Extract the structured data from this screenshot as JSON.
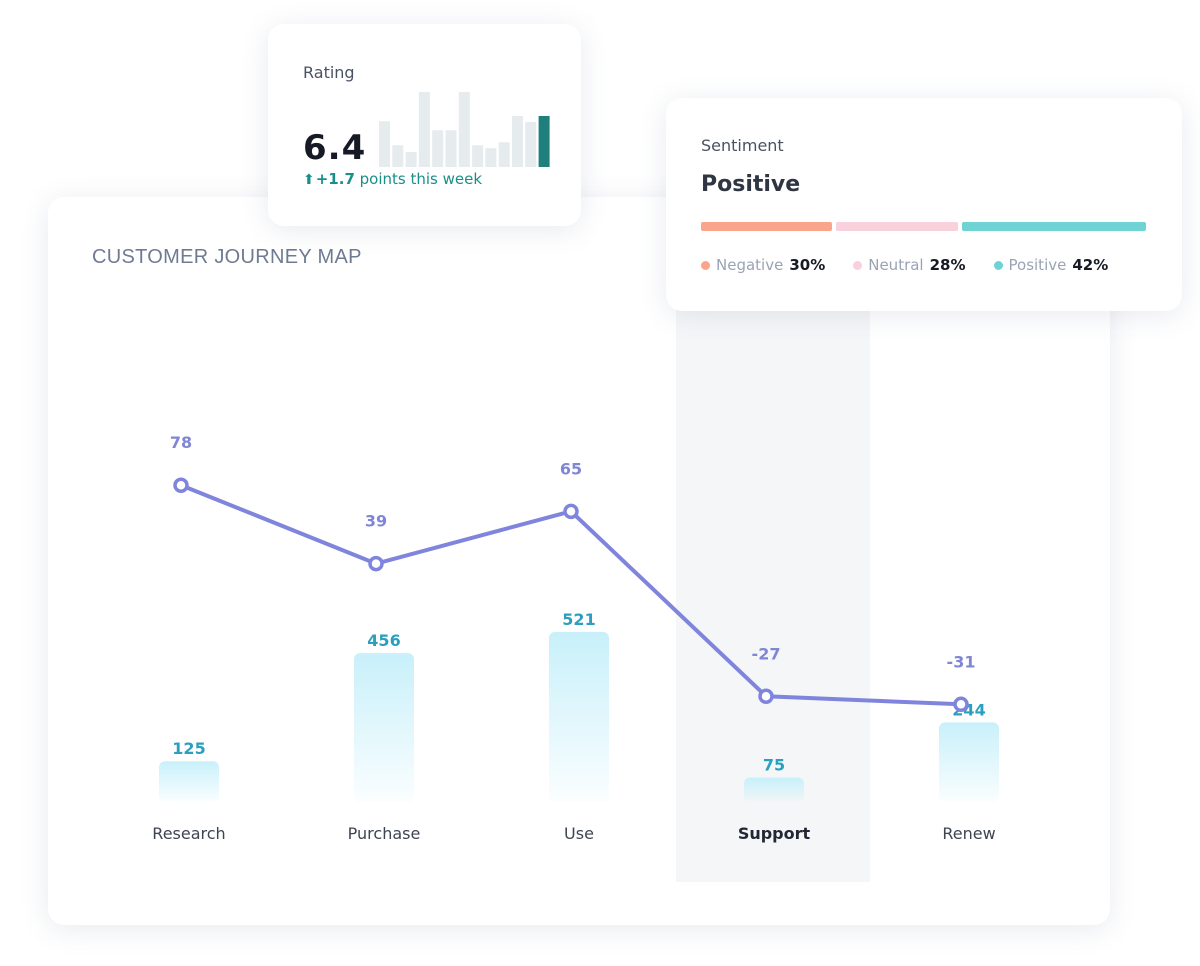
{
  "journey": {
    "title": "CUSTOMER JOURNEY MAP",
    "highlighted_stage": "Support"
  },
  "chart_data": {
    "type": "bar",
    "categories": [
      "Research",
      "Purchase",
      "Use",
      "Support",
      "Renew"
    ],
    "series": [
      {
        "type": "bar",
        "values": [
          125,
          456,
          521,
          75,
          244
        ],
        "color": "#c8f0fa"
      },
      {
        "type": "line",
        "values": [
          78,
          39,
          65,
          -27,
          -31
        ],
        "color": "#7f85dc"
      }
    ],
    "title": "CUSTOMER JOURNEY MAP",
    "xlabel": "",
    "ylabel": "",
    "grid": false
  },
  "rating": {
    "title": "Rating",
    "value": "6.4",
    "change_arrow": "⬆",
    "change_delta": "+1.7",
    "change_text": "points this week",
    "history": [
      0.61,
      0.29,
      0.2,
      1.0,
      0.49,
      0.49,
      1.0,
      0.29,
      0.25,
      0.33,
      0.68,
      0.6,
      0.68
    ],
    "bar_color": "#e6ebee",
    "highlight_color": "#1e7f7c"
  },
  "sentiment": {
    "title": "Sentiment",
    "value": "Positive",
    "segments": [
      {
        "name": "Negative",
        "percent": 30,
        "label": "30%",
        "color": "#f9a48b"
      },
      {
        "name": "Neutral",
        "percent": 28,
        "label": "28%",
        "color": "#f9d1dc"
      },
      {
        "name": "Positive",
        "percent": 42,
        "label": "42%",
        "color": "#6fd2d4"
      }
    ]
  }
}
